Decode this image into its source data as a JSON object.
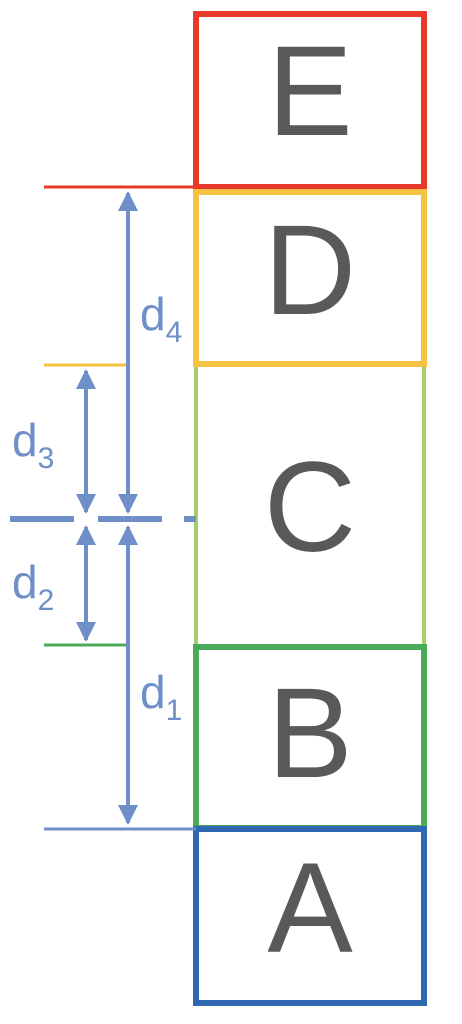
{
  "boxes": [
    {
      "id": "E",
      "label": "E",
      "color": "#e8392a"
    },
    {
      "id": "D",
      "label": "D",
      "color": "#f5c242"
    },
    {
      "id": "C",
      "label": "C",
      "color": "#a3d06a"
    },
    {
      "id": "B",
      "label": "B",
      "color": "#4aaa5a"
    },
    {
      "id": "A",
      "label": "A",
      "color": "#2f67b0"
    }
  ],
  "dimensions": [
    {
      "id": "d4",
      "base": "d",
      "sub": "4"
    },
    {
      "id": "d3",
      "base": "d",
      "sub": "3"
    },
    {
      "id": "d2",
      "base": "d",
      "sub": "2"
    },
    {
      "id": "d1",
      "base": "d",
      "sub": "1"
    }
  ],
  "colors": {
    "dimension": "#6f8fc8",
    "letter": "#595959"
  }
}
